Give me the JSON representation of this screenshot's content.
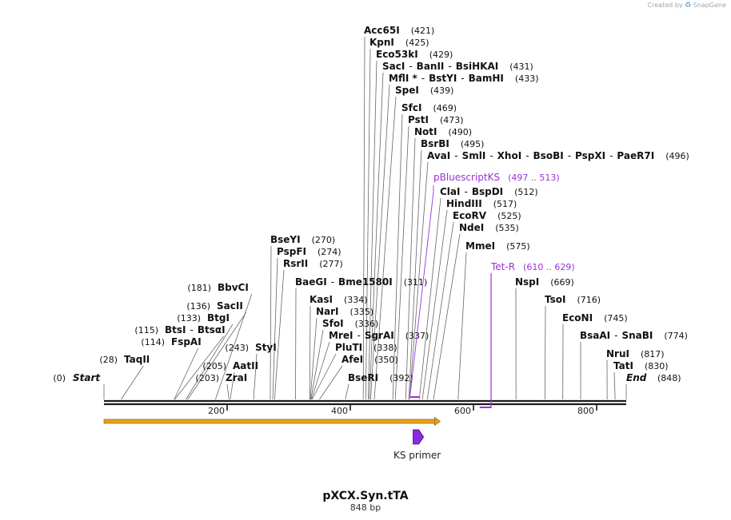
{
  "watermark": {
    "prefix": "Created by",
    "brand": "SnapGene",
    "icon": "snapgene-logo-icon"
  },
  "plasmid": {
    "name": "pXCX.Syn.tTA",
    "length_text": "848 bp",
    "length": 848
  },
  "colors": {
    "backbone": "#1a1a1a",
    "feature_purple": "#9b30d9",
    "orf_orange": "#e8a317",
    "primer": "#8a2be2",
    "text": "#111111",
    "grid": "#666666"
  },
  "ruler": {
    "ticks": [
      "200",
      "400",
      "600",
      "800"
    ],
    "tick_values": [
      200,
      400,
      600,
      800
    ]
  },
  "sites": [
    {
      "names": [
        "Acc65I"
      ],
      "pos": "(421)",
      "at": 421
    },
    {
      "names": [
        "KpnI"
      ],
      "pos": "(425)",
      "at": 425
    },
    {
      "names": [
        "Eco53kI"
      ],
      "pos": "(429)",
      "at": 429
    },
    {
      "names": [
        "SacI",
        "BanII",
        "BsiHKAI"
      ],
      "pos": "(431)",
      "at": 431
    },
    {
      "names": [
        "MflI *",
        "BstYI",
        "BamHI"
      ],
      "pos": "(433)",
      "at": 433
    },
    {
      "names": [
        "SpeI"
      ],
      "pos": "(439)",
      "at": 439
    },
    {
      "names": [
        "SfcI"
      ],
      "pos": "(469)",
      "at": 469
    },
    {
      "names": [
        "PstI"
      ],
      "pos": "(473)",
      "at": 473
    },
    {
      "names": [
        "NotI"
      ],
      "pos": "(490)",
      "at": 490
    },
    {
      "names": [
        "BsrBI"
      ],
      "pos": "(495)",
      "at": 495
    },
    {
      "names": [
        "AvaI",
        "SmlI",
        "XhoI",
        "BsoBI",
        "PspXI",
        "PaeR7I"
      ],
      "pos": "(496)",
      "at": 496
    },
    {
      "names": [
        "ClaI",
        "BspDI"
      ],
      "pos": "(512)",
      "at": 512
    },
    {
      "names": [
        "HindIII"
      ],
      "pos": "(517)",
      "at": 517
    },
    {
      "names": [
        "EcoRV"
      ],
      "pos": "(525)",
      "at": 525
    },
    {
      "names": [
        "NdeI"
      ],
      "pos": "(535)",
      "at": 535
    },
    {
      "names": [
        "MmeI"
      ],
      "pos": "(575)",
      "at": 575
    },
    {
      "names": [
        "BseYI"
      ],
      "pos": "(270)",
      "at": 270
    },
    {
      "names": [
        "PspFI"
      ],
      "pos": "(274)",
      "at": 274
    },
    {
      "names": [
        "RsrII"
      ],
      "pos": "(277)",
      "at": 277
    },
    {
      "names": [
        "BaeGI",
        "Bme1580I"
      ],
      "pos": "(311)",
      "at": 311
    },
    {
      "names": [
        "KasI"
      ],
      "pos": "(334)",
      "at": 334
    },
    {
      "names": [
        "NarI"
      ],
      "pos": "(335)",
      "at": 335
    },
    {
      "names": [
        "SfoI"
      ],
      "pos": "(336)",
      "at": 336
    },
    {
      "names": [
        "MreI",
        "SgrAI"
      ],
      "pos": "(337)",
      "at": 337
    },
    {
      "names": [
        "PluTI"
      ],
      "pos": "(338)",
      "at": 338
    },
    {
      "names": [
        "AfeI"
      ],
      "pos": "(350)",
      "at": 350
    },
    {
      "names": [
        "BseRI"
      ],
      "pos": "(392)",
      "at": 392
    },
    {
      "names": [
        "NspI"
      ],
      "pos": "(669)",
      "at": 669
    },
    {
      "names": [
        "TsoI"
      ],
      "pos": "(716)",
      "at": 716
    },
    {
      "names": [
        "EcoNI"
      ],
      "pos": "(745)",
      "at": 745
    },
    {
      "names": [
        "BsaAI",
        "SnaBI"
      ],
      "pos": "(774)",
      "at": 774
    },
    {
      "names": [
        "NruI"
      ],
      "pos": "(817)",
      "at": 817
    },
    {
      "names": [
        "TatI"
      ],
      "pos": "(830)",
      "at": 830
    },
    {
      "names": [
        "BbvCI"
      ],
      "pos": "(181)",
      "at": 181
    },
    {
      "names": [
        "SacII"
      ],
      "pos": "(136)",
      "at": 136
    },
    {
      "names": [
        "BtgI"
      ],
      "pos": "(133)",
      "at": 133
    },
    {
      "names": [
        "BtsI",
        "BtsαI"
      ],
      "pos": "(115)",
      "at": 115
    },
    {
      "names": [
        "FspAI"
      ],
      "pos": "(114)",
      "at": 114
    },
    {
      "names": [
        "StyI"
      ],
      "pos": "(243)",
      "at": 243
    },
    {
      "names": [
        "TaqII"
      ],
      "pos": "(28)",
      "at": 28
    },
    {
      "names": [
        "AatII"
      ],
      "pos": "(205)",
      "at": 205
    },
    {
      "names": [
        "ZraI"
      ],
      "pos": "(203)",
      "at": 203
    }
  ],
  "ends": [
    {
      "name": "Start",
      "pos": "(0)",
      "at": 0
    },
    {
      "name": "End",
      "pos": "(848)",
      "at": 848
    }
  ],
  "features": [
    {
      "name": "pBluescriptKS",
      "range": "(497 .. 513)",
      "start": 497,
      "end": 513
    },
    {
      "name": "Tet-R",
      "range": "(610 .. 629)",
      "start": 610,
      "end": 629
    }
  ],
  "orf": {
    "start": 0,
    "end": 546
  },
  "primer": {
    "name": "KS primer",
    "at": 502
  }
}
